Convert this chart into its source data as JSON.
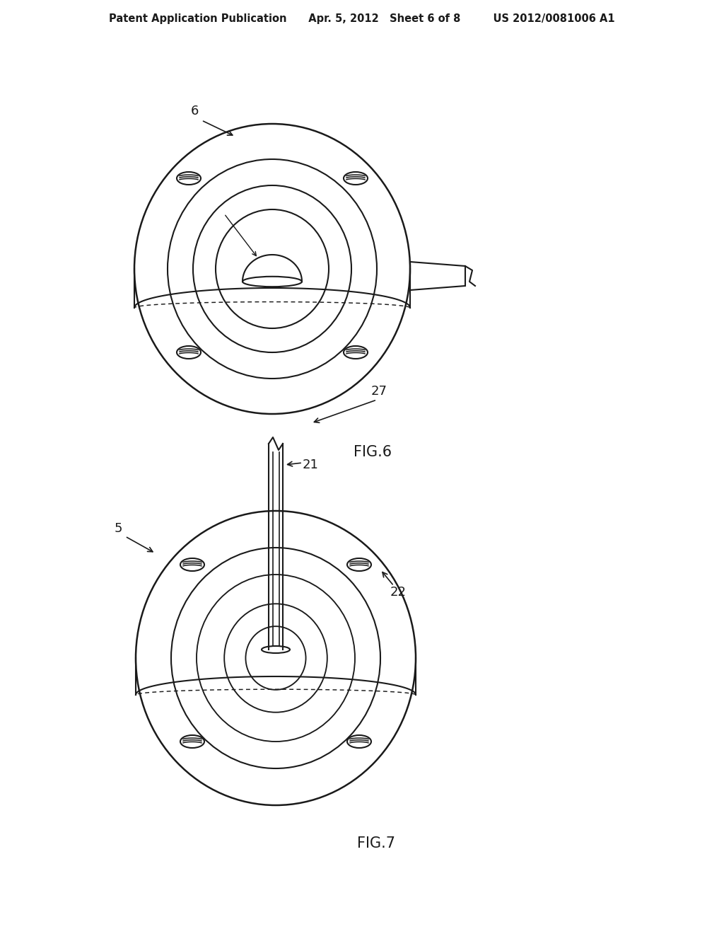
{
  "bg_color": "#ffffff",
  "line_color": "#1a1a1a",
  "lw": 1.5,
  "fig6_label": "FIG.6",
  "fig7_label": "FIG.7",
  "header": "Patent Application Publication      Apr. 5, 2012   Sheet 6 of 8         US 2012/0081006 A1"
}
